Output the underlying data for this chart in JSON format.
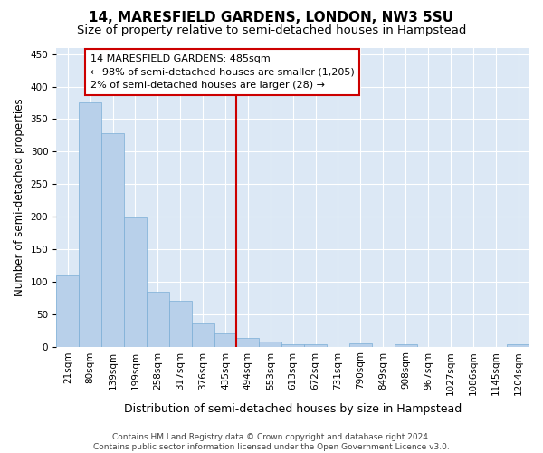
{
  "title": "14, MARESFIELD GARDENS, LONDON, NW3 5SU",
  "subtitle": "Size of property relative to semi-detached houses in Hampstead",
  "xlabel": "Distribution of semi-detached houses by size in Hampstead",
  "ylabel": "Number of semi-detached properties",
  "bar_labels": [
    "21sqm",
    "80sqm",
    "139sqm",
    "199sqm",
    "258sqm",
    "317sqm",
    "376sqm",
    "435sqm",
    "494sqm",
    "553sqm",
    "613sqm",
    "672sqm",
    "731sqm",
    "790sqm",
    "849sqm",
    "908sqm",
    "967sqm",
    "1027sqm",
    "1086sqm",
    "1145sqm",
    "1204sqm"
  ],
  "bar_values": [
    110,
    375,
    328,
    199,
    85,
    70,
    35,
    20,
    13,
    8,
    4,
    3,
    0,
    5,
    0,
    4,
    0,
    0,
    0,
    0,
    3
  ],
  "bar_color": "#b8d0ea",
  "bar_edge_color": "#7aaed6",
  "vline_color": "#cc0000",
  "annotation_text": "14 MARESFIELD GARDENS: 485sqm\n← 98% of semi-detached houses are smaller (1,205)\n2% of semi-detached houses are larger (28) →",
  "annotation_box_color": "#ffffff",
  "annotation_box_edge_color": "#cc0000",
  "ylim": [
    0,
    460
  ],
  "yticks": [
    0,
    50,
    100,
    150,
    200,
    250,
    300,
    350,
    400,
    450
  ],
  "background_color": "#dce8f5",
  "grid_color": "#ffffff",
  "fig_background": "#ffffff",
  "footer_text": "Contains HM Land Registry data © Crown copyright and database right 2024.\nContains public sector information licensed under the Open Government Licence v3.0.",
  "title_fontsize": 11,
  "subtitle_fontsize": 9.5,
  "xlabel_fontsize": 9,
  "ylabel_fontsize": 8.5,
  "tick_fontsize": 7.5,
  "annotation_fontsize": 8,
  "footer_fontsize": 6.5
}
